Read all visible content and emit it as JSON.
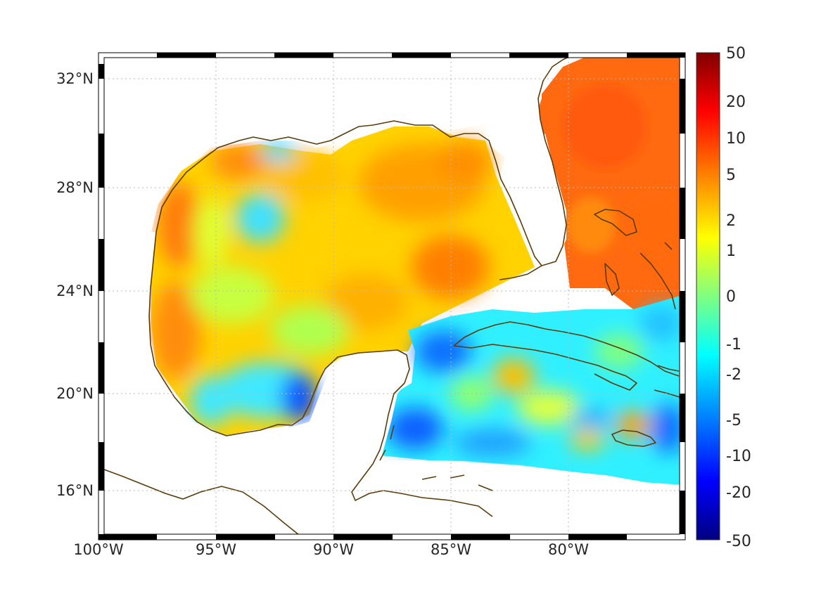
{
  "map": {
    "lon_ticks": [
      "100°W",
      "95°W",
      "90°W",
      "85°W",
      "80°W"
    ],
    "lat_ticks": [
      "32°N",
      "28°N",
      "24°N",
      "20°N",
      "16°N"
    ],
    "extent": {
      "lon_min": -100,
      "lon_max": -75.1,
      "lat_min": 14.2,
      "lat_max": 33.0
    },
    "grid": "dotted",
    "frame": "black-white checkered border"
  },
  "colorbar": {
    "labels": [
      "50",
      "20",
      "10",
      "5",
      "2",
      "1",
      "0",
      "-1",
      "-2",
      "-5",
      "-10",
      "-20",
      "-50"
    ],
    "colormap": "jet",
    "colors": [
      "#800000",
      "#ff0000",
      "#ff8000",
      "#ffff00",
      "#80ff80",
      "#00ffff",
      "#0080ff",
      "#0000ff",
      "#000080"
    ]
  },
  "coastline_color": "#5c3a0a",
  "land_color": "#ffffff"
}
